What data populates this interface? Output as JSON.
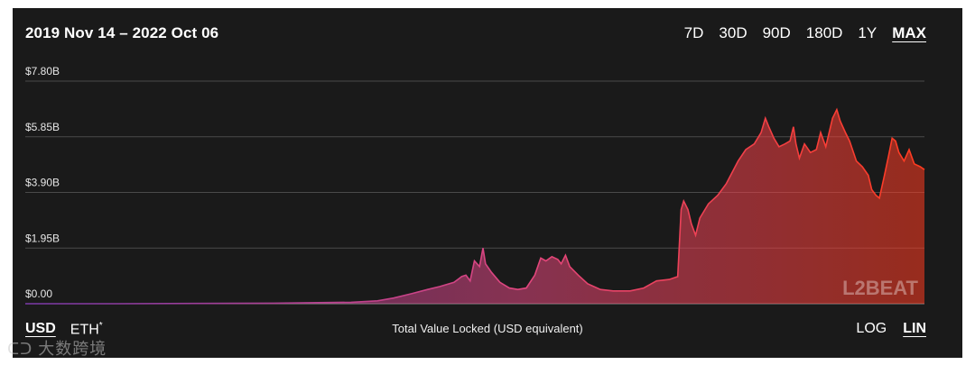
{
  "header": {
    "date_range": "2019 Nov 14 – 2022 Oct 06",
    "ranges": [
      "7D",
      "30D",
      "90D",
      "180D",
      "1Y",
      "MAX"
    ],
    "active_range": "MAX"
  },
  "footer": {
    "currencies": [
      {
        "label": "USD",
        "sup": "",
        "active": true
      },
      {
        "label": "ETH",
        "sup": "*",
        "active": false
      }
    ],
    "caption": "Total Value Locked (USD equivalent)",
    "scales": [
      {
        "label": "LOG",
        "active": false
      },
      {
        "label": "LIN",
        "active": true
      }
    ]
  },
  "brand": {
    "logo_text": "L2BEAT",
    "watermark_text": "大数跨境"
  },
  "colors": {
    "start": "#7a3aa8",
    "mid": "#e0467f",
    "end": "#ff3b1f",
    "grid": "#4a4a4a",
    "background": "#1a1a1a"
  },
  "chart_data": {
    "type": "area",
    "title": "",
    "xlabel": "Total Value Locked (USD equivalent)",
    "ylabel": "",
    "ylim": [
      0,
      7.8
    ],
    "yticks": [
      "$0.00",
      "$1.95B",
      "$3.90B",
      "$5.85B",
      "$7.80B"
    ],
    "ytick_values": [
      0,
      1.95,
      3.9,
      5.85,
      7.8
    ],
    "grid": true,
    "x_start": "2019-11-14",
    "x_end": "2022-10-06",
    "series": [
      {
        "name": "",
        "points": [
          [
            "2019-11-14",
            0.0
          ],
          [
            "2020-03-01",
            0.0
          ],
          [
            "2020-06-01",
            0.01
          ],
          [
            "2020-09-01",
            0.02
          ],
          [
            "2020-12-01",
            0.05
          ],
          [
            "2021-01-01",
            0.1
          ],
          [
            "2021-01-20",
            0.2
          ],
          [
            "2021-02-10",
            0.35
          ],
          [
            "2021-03-01",
            0.5
          ],
          [
            "2021-03-15",
            0.6
          ],
          [
            "2021-04-01",
            0.75
          ],
          [
            "2021-04-10",
            0.95
          ],
          [
            "2021-04-15",
            1.0
          ],
          [
            "2021-04-20",
            0.8
          ],
          [
            "2021-04-25",
            1.5
          ],
          [
            "2021-05-01",
            1.3
          ],
          [
            "2021-05-05",
            1.95
          ],
          [
            "2021-05-08",
            1.4
          ],
          [
            "2021-05-15",
            1.1
          ],
          [
            "2021-05-25",
            0.75
          ],
          [
            "2021-06-05",
            0.55
          ],
          [
            "2021-06-15",
            0.5
          ],
          [
            "2021-06-25",
            0.55
          ],
          [
            "2021-07-05",
            1.0
          ],
          [
            "2021-07-12",
            1.6
          ],
          [
            "2021-07-18",
            1.5
          ],
          [
            "2021-07-25",
            1.65
          ],
          [
            "2021-08-01",
            1.55
          ],
          [
            "2021-08-05",
            1.4
          ],
          [
            "2021-08-10",
            1.7
          ],
          [
            "2021-08-15",
            1.3
          ],
          [
            "2021-08-25",
            1.0
          ],
          [
            "2021-09-05",
            0.7
          ],
          [
            "2021-09-20",
            0.5
          ],
          [
            "2021-10-05",
            0.45
          ],
          [
            "2021-10-25",
            0.45
          ],
          [
            "2021-11-10",
            0.55
          ],
          [
            "2021-11-25",
            0.8
          ],
          [
            "2021-12-10",
            0.85
          ],
          [
            "2021-12-20",
            0.95
          ],
          [
            "2021-12-24",
            3.3
          ],
          [
            "2021-12-27",
            3.6
          ],
          [
            "2022-01-01",
            3.3
          ],
          [
            "2022-01-05",
            2.8
          ],
          [
            "2022-01-10",
            2.4
          ],
          [
            "2022-01-15",
            3.0
          ],
          [
            "2022-01-25",
            3.5
          ],
          [
            "2022-02-05",
            3.8
          ],
          [
            "2022-02-15",
            4.2
          ],
          [
            "2022-03-01",
            5.0
          ],
          [
            "2022-03-10",
            5.4
          ],
          [
            "2022-03-20",
            5.6
          ],
          [
            "2022-03-28",
            6.0
          ],
          [
            "2022-04-02",
            6.5
          ],
          [
            "2022-04-06",
            6.2
          ],
          [
            "2022-04-12",
            5.8
          ],
          [
            "2022-04-18",
            5.5
          ],
          [
            "2022-04-25",
            5.6
          ],
          [
            "2022-05-01",
            5.7
          ],
          [
            "2022-05-05",
            6.2
          ],
          [
            "2022-05-08",
            5.6
          ],
          [
            "2022-05-12",
            5.1
          ],
          [
            "2022-05-18",
            5.6
          ],
          [
            "2022-05-25",
            5.3
          ],
          [
            "2022-06-01",
            5.4
          ],
          [
            "2022-06-06",
            6.0
          ],
          [
            "2022-06-12",
            5.5
          ],
          [
            "2022-06-20",
            6.5
          ],
          [
            "2022-06-25",
            6.8
          ],
          [
            "2022-06-29",
            6.4
          ],
          [
            "2022-07-05",
            6.0
          ],
          [
            "2022-07-10",
            5.7
          ],
          [
            "2022-07-18",
            5.0
          ],
          [
            "2022-07-25",
            4.8
          ],
          [
            "2022-08-01",
            4.5
          ],
          [
            "2022-08-05",
            4.0
          ],
          [
            "2022-08-10",
            3.8
          ],
          [
            "2022-08-14",
            3.7
          ],
          [
            "2022-08-20",
            4.5
          ],
          [
            "2022-08-25",
            5.2
          ],
          [
            "2022-08-29",
            5.8
          ],
          [
            "2022-09-02",
            5.7
          ],
          [
            "2022-09-06",
            5.3
          ],
          [
            "2022-09-12",
            5.0
          ],
          [
            "2022-09-18",
            5.4
          ],
          [
            "2022-09-24",
            4.9
          ],
          [
            "2022-10-01",
            4.8
          ],
          [
            "2022-10-06",
            4.7
          ]
        ]
      }
    ]
  }
}
